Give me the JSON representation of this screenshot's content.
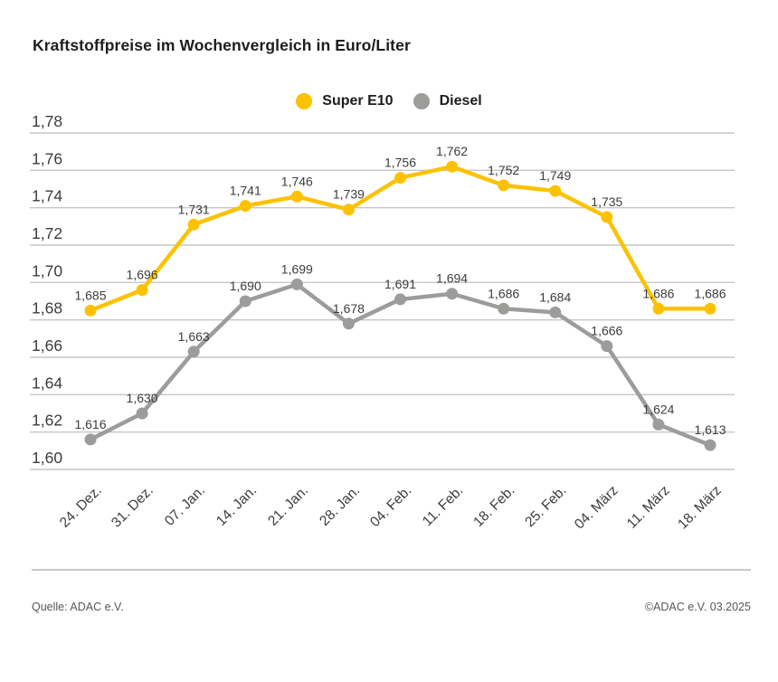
{
  "title": "Kraftstoffpreise im Wochenvergleich in Euro/Liter",
  "legend": [
    {
      "label": "Super E10",
      "color": "#fcc200"
    },
    {
      "label": "Diesel",
      "color": "#9c9c9b"
    }
  ],
  "footer": {
    "source": "Quelle: ADAC e.V.",
    "copyright": "©ADAC e.V. 03.2025"
  },
  "colors": {
    "super_e10": "#fcc200",
    "diesel": "#9c9c9b",
    "gridline": "#c6c6c6",
    "axis_text": "#3c3c3b",
    "label_text": "#3c3c3b",
    "title_text": "#1d1d1b"
  },
  "chart_data": {
    "type": "line",
    "title": "Kraftstoffpreise im Wochenvergleich in Euro/Liter",
    "categories": [
      "24. Dez.",
      "31. Dez.",
      "07. Jan.",
      "14. Jan.",
      "21. Jan.",
      "28. Jan.",
      "04. Feb.",
      "11. Feb.",
      "18. Feb.",
      "25. Feb.",
      "04. März",
      "11. März",
      "18. März"
    ],
    "series": [
      {
        "name": "Super E10",
        "color": "#fcc200",
        "values": [
          1.685,
          1.696,
          1.731,
          1.741,
          1.746,
          1.739,
          1.756,
          1.762,
          1.752,
          1.749,
          1.735,
          1.686,
          1.686
        ]
      },
      {
        "name": "Diesel",
        "color": "#9c9c9b",
        "values": [
          1.616,
          1.63,
          1.663,
          1.69,
          1.699,
          1.678,
          1.691,
          1.694,
          1.686,
          1.684,
          1.666,
          1.624,
          1.613
        ]
      }
    ],
    "xlabel": "",
    "ylabel": "Euro/Liter",
    "ylim": [
      1.6,
      1.78
    ],
    "ytick_step": 0.02,
    "decimal_separator": ",",
    "grid": true,
    "point_labels": true,
    "legend_position": "top-center"
  }
}
